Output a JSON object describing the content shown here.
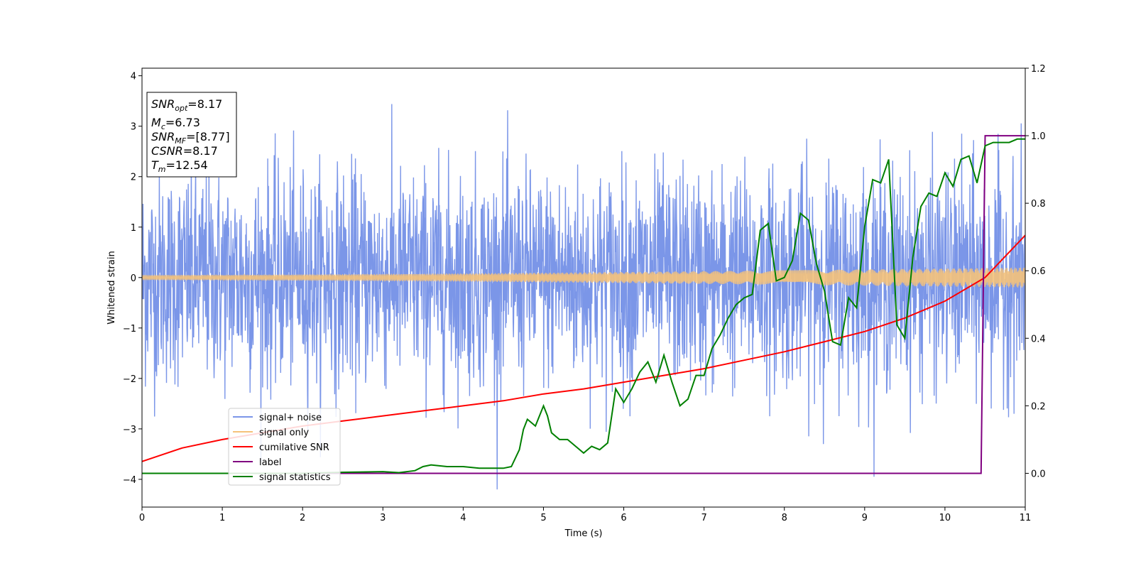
{
  "chart_data": {
    "type": "line",
    "xlabel": "Time (s)",
    "ylabel": "Whitened strain",
    "xlim": [
      0,
      11
    ],
    "ylim_left": [
      -4.55,
      4.15
    ],
    "ylim_right": [
      -0.1,
      1.2
    ],
    "x_ticks": [
      "0",
      "1",
      "2",
      "3",
      "4",
      "5",
      "6",
      "7",
      "8",
      "9",
      "10",
      "11"
    ],
    "y_ticks_left": [
      "4",
      "3",
      "2",
      "1",
      "0",
      "−1",
      "−2",
      "−3",
      "−4"
    ],
    "y_ticks_right": [
      "1.2",
      "1.0",
      "0.8",
      "0.6",
      "0.4",
      "0.2",
      "0.0"
    ],
    "grid": false,
    "legend_position": "lower-left",
    "colors": {
      "noise": "#7b96e8",
      "signal": "#f5c27a",
      "snr": "#ff0000",
      "label": "#800080",
      "stats": "#008000"
    },
    "info_box": {
      "snr_opt": {
        "main": "SNR",
        "sub": "opt",
        "value": "=8.17"
      },
      "mc": {
        "main": "M",
        "sub": "c",
        "value": "=6.73"
      },
      "snr_mf": {
        "main": "SNR",
        "sub": "MF",
        "value": "=[8.77]"
      },
      "csnr": {
        "main": "CSNR",
        "value": "=8.17"
      },
      "tm": {
        "main": "T",
        "sub": "m",
        "value": "=12.54"
      }
    },
    "series": [
      {
        "name": "signal+ noise",
        "axis": "left",
        "description_values": "noise band approx mean 0, range about -4.2 to 3.8"
      },
      {
        "name": "signal only",
        "axis": "left",
        "amplitude_start": 0.05,
        "amplitude_end": 0.2
      },
      {
        "name": "cumilative SNR",
        "axis": "right",
        "x": [
          0,
          0.5,
          1,
          1.5,
          2,
          2.5,
          3,
          3.5,
          4,
          4.5,
          5,
          5.5,
          6,
          6.5,
          7,
          7.5,
          8,
          8.5,
          9,
          9.5,
          10,
          10.5,
          11
        ],
        "y": [
          0.035,
          0.075,
          0.1,
          0.12,
          0.14,
          0.155,
          0.17,
          0.185,
          0.2,
          0.215,
          0.235,
          0.25,
          0.27,
          0.29,
          0.31,
          0.335,
          0.36,
          0.39,
          0.42,
          0.46,
          0.51,
          0.58,
          0.705
        ]
      },
      {
        "name": "label",
        "axis": "right",
        "x": [
          0,
          10.45,
          10.5,
          11
        ],
        "y": [
          0,
          0,
          1,
          1
        ]
      },
      {
        "name": "signal statistics",
        "axis": "right",
        "x": [
          0,
          1,
          2,
          2.5,
          3,
          3.2,
          3.4,
          3.5,
          3.6,
          3.8,
          4,
          4.2,
          4.5,
          4.6,
          4.7,
          4.75,
          4.8,
          4.9,
          5,
          5.05,
          5.1,
          5.2,
          5.3,
          5.4,
          5.5,
          5.6,
          5.7,
          5.8,
          5.9,
          6,
          6.1,
          6.2,
          6.3,
          6.4,
          6.5,
          6.6,
          6.7,
          6.8,
          6.9,
          7,
          7.1,
          7.2,
          7.3,
          7.4,
          7.5,
          7.6,
          7.7,
          7.8,
          7.9,
          8,
          8.1,
          8.2,
          8.3,
          8.4,
          8.5,
          8.6,
          8.7,
          8.8,
          8.9,
          9,
          9.1,
          9.2,
          9.3,
          9.4,
          9.5,
          9.6,
          9.7,
          9.8,
          9.9,
          10,
          10.1,
          10.2,
          10.3,
          10.4,
          10.5,
          10.6,
          10.7,
          10.8,
          10.9,
          11
        ],
        "y": [
          0.0,
          0.0,
          0.0,
          0.003,
          0.005,
          0.002,
          0.008,
          0.02,
          0.025,
          0.02,
          0.02,
          0.015,
          0.015,
          0.02,
          0.07,
          0.13,
          0.16,
          0.14,
          0.2,
          0.17,
          0.12,
          0.1,
          0.1,
          0.08,
          0.06,
          0.08,
          0.07,
          0.09,
          0.25,
          0.21,
          0.25,
          0.3,
          0.33,
          0.27,
          0.35,
          0.27,
          0.2,
          0.22,
          0.29,
          0.29,
          0.37,
          0.41,
          0.46,
          0.5,
          0.52,
          0.53,
          0.72,
          0.74,
          0.57,
          0.58,
          0.63,
          0.77,
          0.75,
          0.62,
          0.54,
          0.39,
          0.38,
          0.52,
          0.49,
          0.73,
          0.87,
          0.86,
          0.93,
          0.44,
          0.4,
          0.64,
          0.79,
          0.83,
          0.82,
          0.89,
          0.85,
          0.93,
          0.94,
          0.86,
          0.97,
          0.98,
          0.98,
          0.98,
          0.99,
          0.99
        ]
      }
    ]
  }
}
